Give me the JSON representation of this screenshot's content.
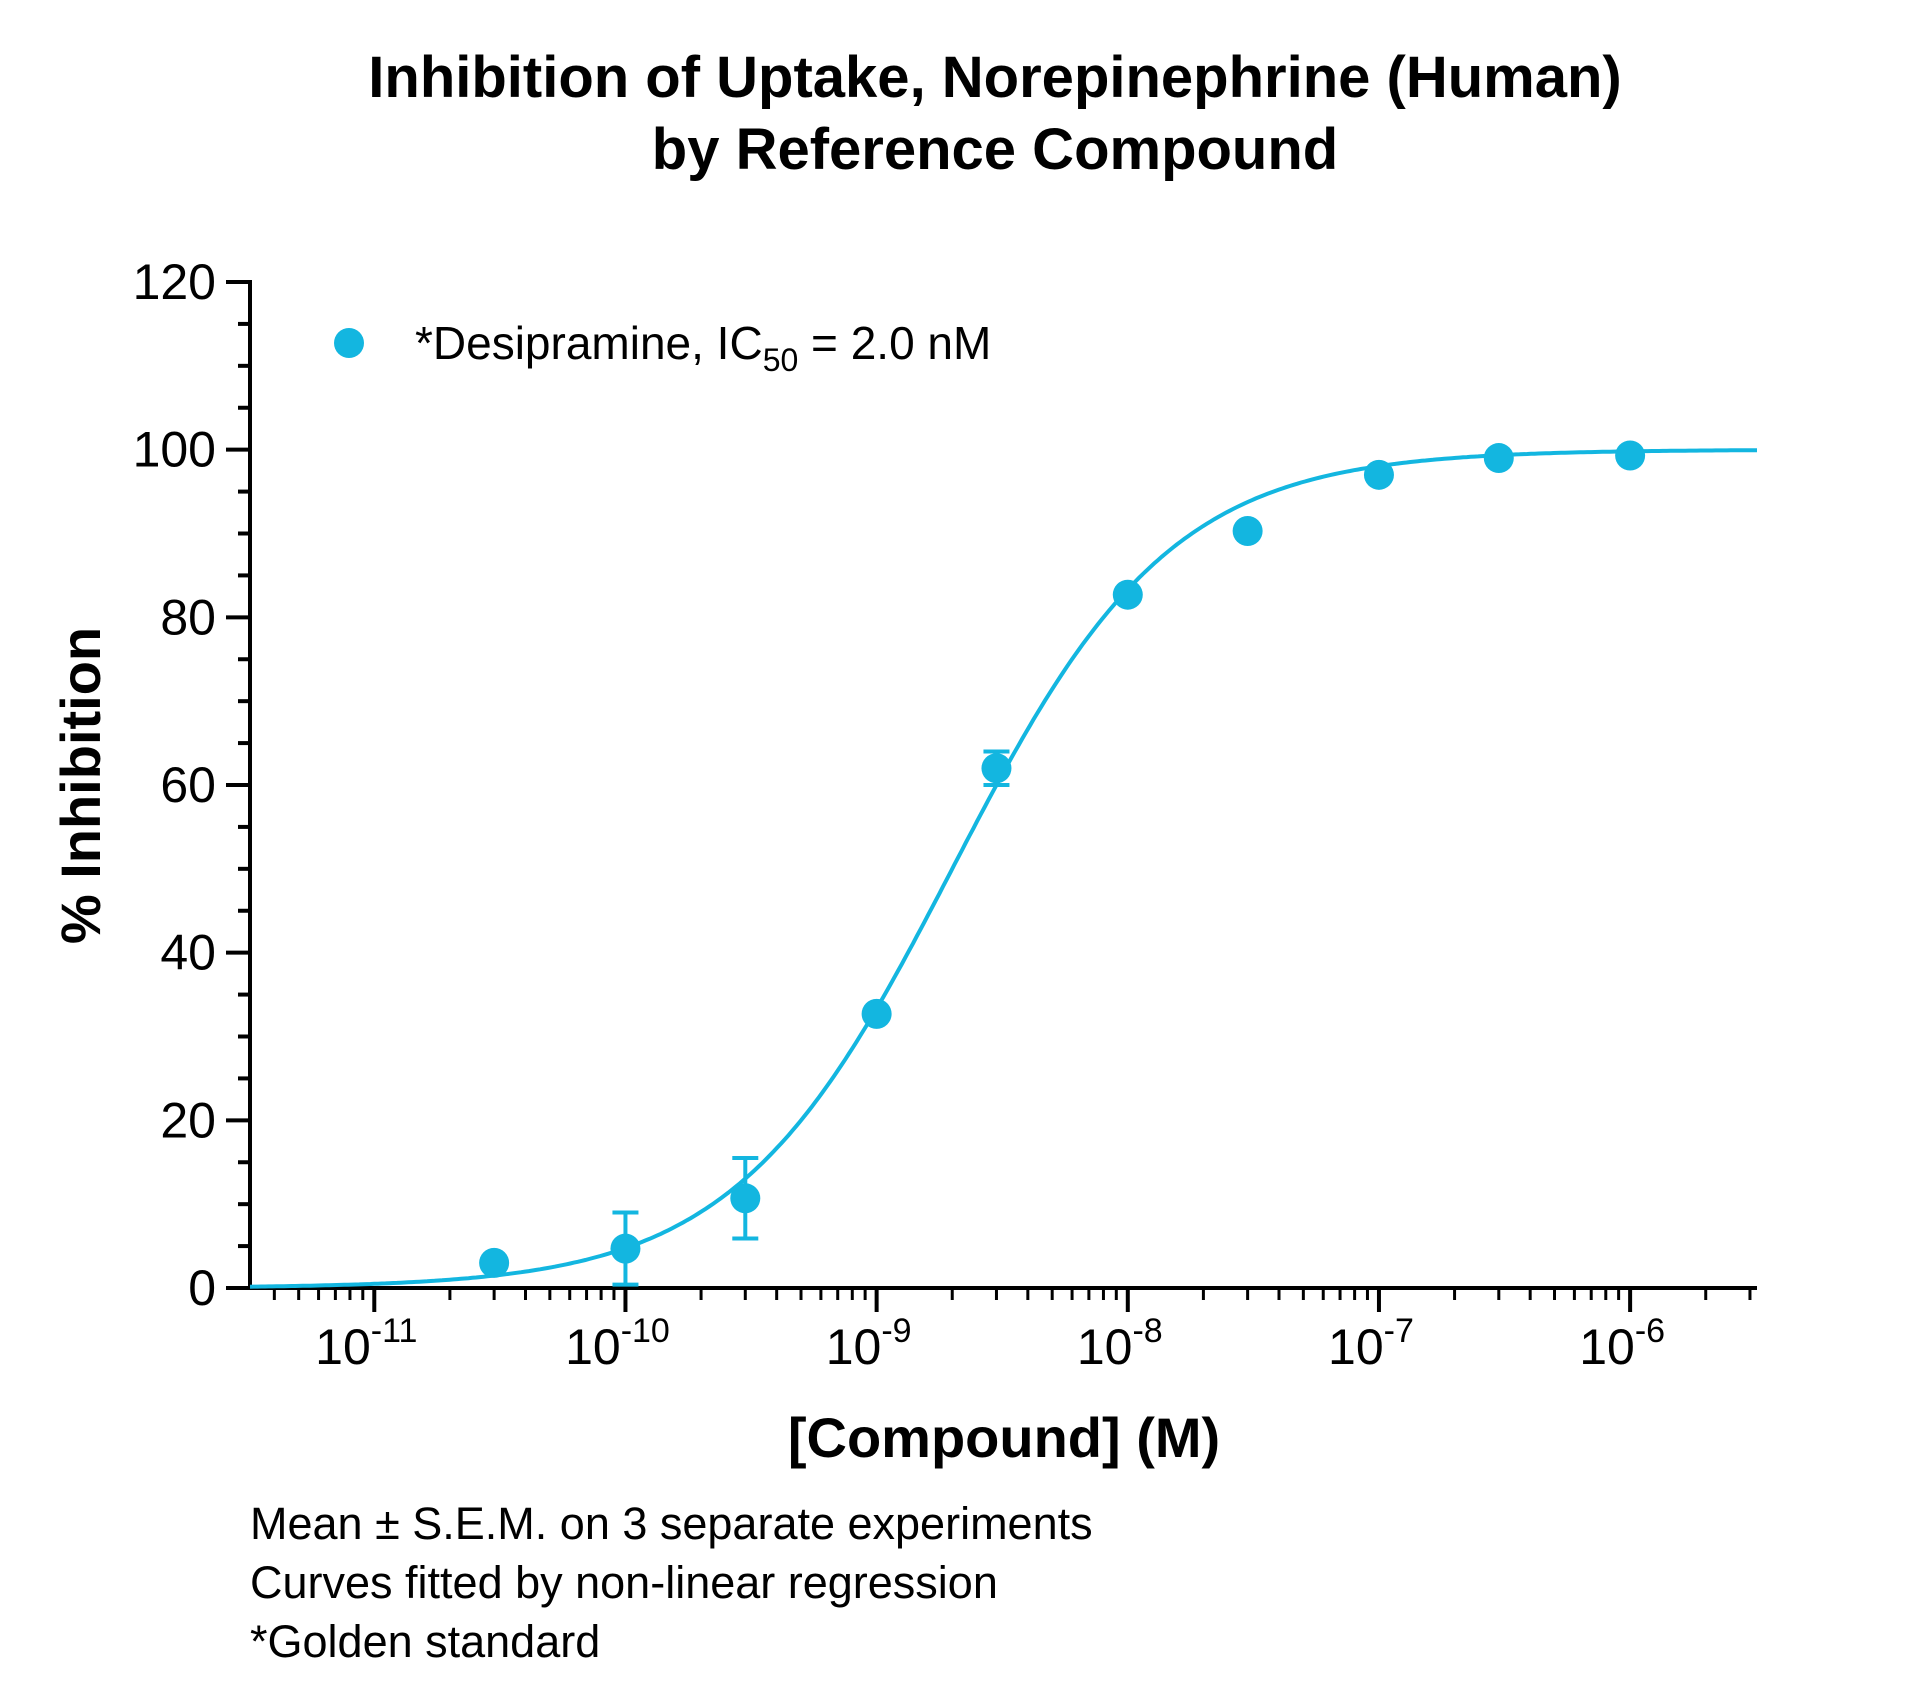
{
  "chart_data": {
    "type": "scatter",
    "title": "Inhibition of Uptake, Norepinephrine (Human)",
    "subtitle": "by Reference Compound",
    "xlabel": "[Compound] (M)",
    "ylabel": "% Inhibition",
    "xscale": "log",
    "xlim": [
      3.2e-12,
      3.2e-06
    ],
    "ylim": [
      0,
      120
    ],
    "y_ticks": [
      {
        "value": 0,
        "label": "0"
      },
      {
        "value": 20,
        "label": "20"
      },
      {
        "value": 40,
        "label": "40"
      },
      {
        "value": 60,
        "label": "60"
      },
      {
        "value": 80,
        "label": "80"
      },
      {
        "value": 100,
        "label": "100"
      },
      {
        "value": 120,
        "label": "120"
      }
    ],
    "x_ticks": [
      {
        "value": 1e-11,
        "base": "10",
        "exp": "-11"
      },
      {
        "value": 1e-10,
        "base": "10",
        "exp": "-10"
      },
      {
        "value": 1e-09,
        "base": "10",
        "exp": "-9"
      },
      {
        "value": 1e-08,
        "base": "10",
        "exp": "-8"
      },
      {
        "value": 1e-07,
        "base": "10",
        "exp": "-7"
      },
      {
        "value": 1e-06,
        "base": "10",
        "exp": "-6"
      }
    ],
    "color": "#13b6e0",
    "grid": false,
    "legend_position": "top-left",
    "series": [
      {
        "legend_prefix": "*Desipramine, IC",
        "legend_sub": "50",
        "legend_suffix": " = 2.0 nM",
        "points": [
          {
            "x": 3e-11,
            "y": 3.0,
            "err": 0
          },
          {
            "x": 1e-10,
            "y": 4.7,
            "err": 4.3
          },
          {
            "x": 3e-10,
            "y": 10.7,
            "err": 4.8
          },
          {
            "x": 1e-09,
            "y": 32.7,
            "err": 0
          },
          {
            "x": 3e-09,
            "y": 62.0,
            "err": 2.0
          },
          {
            "x": 1e-08,
            "y": 82.7,
            "err": 0
          },
          {
            "x": 3e-08,
            "y": 90.3,
            "err": 0
          },
          {
            "x": 1e-07,
            "y": 97.0,
            "err": 0
          },
          {
            "x": 3e-07,
            "y": 99.0,
            "err": 0
          },
          {
            "x": 1e-06,
            "y": 99.3,
            "err": 0
          }
        ],
        "fit": {
          "model": "four-parameter logistic",
          "bottom": 0,
          "top": 100,
          "ic50": 2e-09,
          "hill": 1.0
        }
      }
    ]
  },
  "notes": [
    "Mean ± S.E.M. on 3 separate experiments",
    "Curves fitted by non-linear regression",
    "*Golden standard"
  ]
}
